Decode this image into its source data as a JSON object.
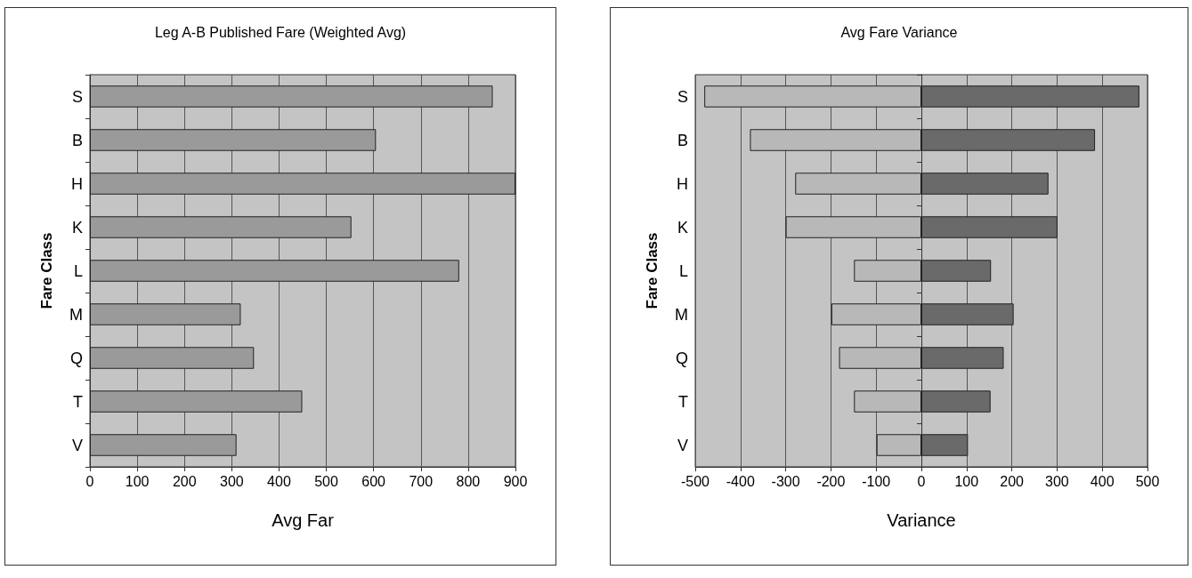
{
  "chart_data": [
    {
      "type": "bar",
      "orientation": "horizontal",
      "title": "Leg A-B Published Fare (Weighted Avg)",
      "xlabel": "Avg Far",
      "ylabel": "Fare Class",
      "categories": [
        "S",
        "B",
        "H",
        "K",
        "L",
        "M",
        "Q",
        "T",
        "V"
      ],
      "series": [
        {
          "color": "#9a9a9a",
          "values": [
            852,
            605,
            900,
            553,
            781,
            319,
            347,
            449,
            310
          ]
        }
      ],
      "xlim": [
        0,
        900
      ],
      "xticks": [
        0,
        100,
        200,
        300,
        400,
        500,
        600,
        700,
        800,
        900
      ],
      "grid": "x"
    },
    {
      "type": "bar",
      "orientation": "horizontal",
      "stacked": true,
      "title": "Avg Fare Variance",
      "xlabel": "Variance",
      "ylabel": "Fare Class",
      "categories": [
        "S",
        "B",
        "H",
        "K",
        "L",
        "M",
        "Q",
        "T",
        "V"
      ],
      "series": [
        {
          "color": "#b8b8b8",
          "values": [
            -480,
            -379,
            -279,
            -300,
            -149,
            -199,
            -182,
            -149,
            -99
          ]
        },
        {
          "color": "#6a6a6a",
          "values": [
            482,
            384,
            281,
            301,
            154,
            204,
            182,
            153,
            103
          ]
        }
      ],
      "xlim": [
        -500,
        500
      ],
      "xticks": [
        -500,
        -400,
        -300,
        -200,
        -100,
        0,
        100,
        200,
        300,
        400,
        500
      ],
      "grid": "x"
    }
  ]
}
